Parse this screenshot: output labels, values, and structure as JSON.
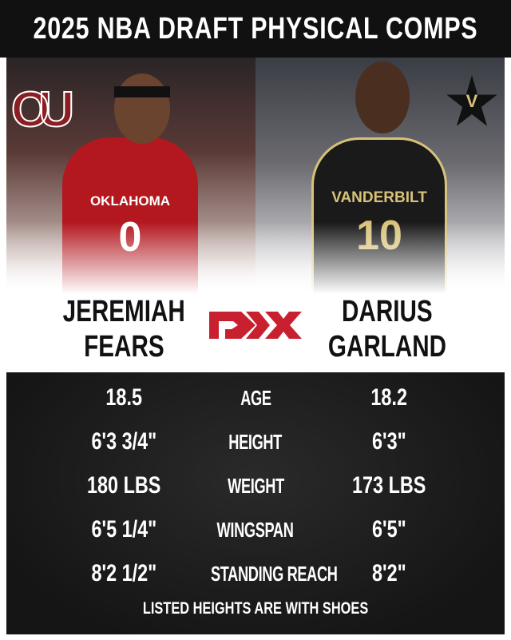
{
  "title": "2025 NBA DRAFT PHYSICAL COMPS",
  "left_player": {
    "first": "JEREMIAH",
    "last": "FEARS",
    "school_logo": "OU",
    "jersey_text": "OKLAHOMA",
    "number": "0",
    "color": "#b3181f"
  },
  "right_player": {
    "first": "DARIUS",
    "last": "GARLAND",
    "school_logo": "V",
    "jersey_text": "VANDERBILT",
    "number": "10",
    "color": "#1a1a1a",
    "accent": "#d8c27a"
  },
  "center_logo": "DX",
  "brand_color": "#c8202f",
  "stats": [
    {
      "left": "18.5",
      "label": "AGE",
      "right": "18.2"
    },
    {
      "left": "6'3 3/4\"",
      "label": "HEIGHT",
      "right": "6'3\""
    },
    {
      "left": "180 LBS",
      "label": "WEIGHT",
      "right": "173 LBS"
    },
    {
      "left": "6'5 1/4\"",
      "label": "WINGSPAN",
      "right": "6'5\""
    },
    {
      "left": "8'2 1/2\"",
      "label": "STANDING REACH",
      "right": "8'2\""
    }
  ],
  "note": "LISTED HEIGHTS ARE WITH SHOES"
}
